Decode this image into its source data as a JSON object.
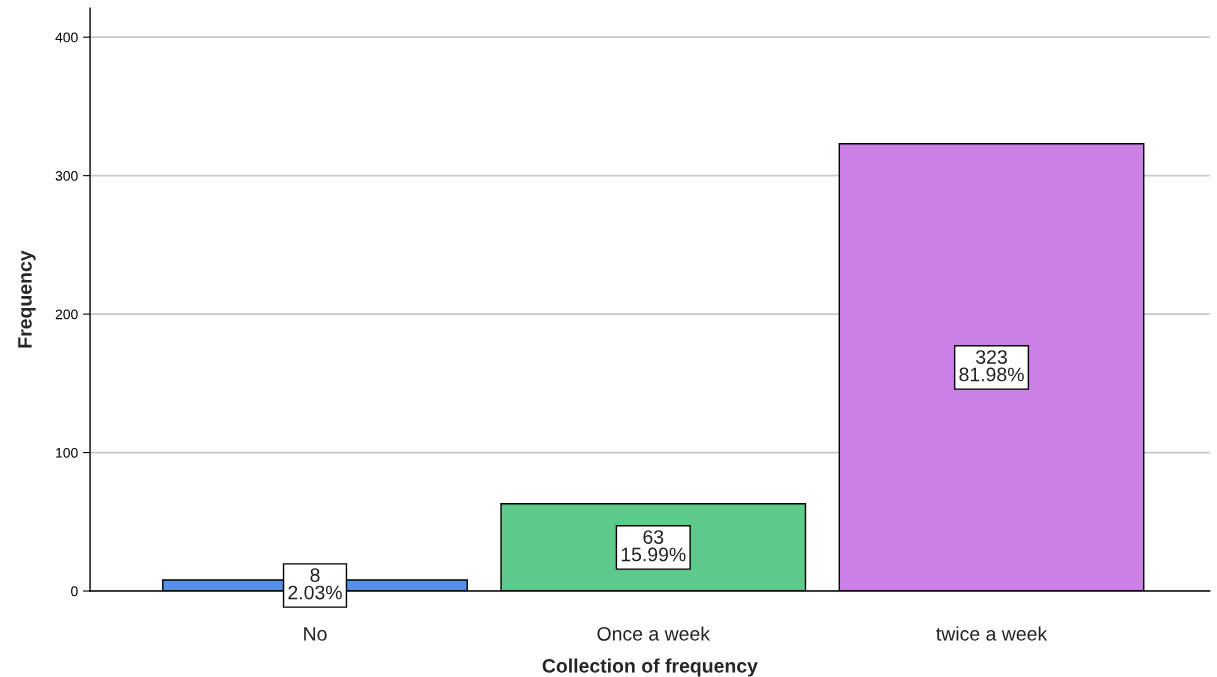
{
  "chart_data": {
    "type": "bar",
    "xlabel": "Collection of frequency",
    "ylabel": "Frequency",
    "categories": [
      "No",
      "Once a week",
      "twice a week"
    ],
    "values": [
      8,
      63,
      323
    ],
    "colors": [
      "#5592e3",
      "#5dc98a",
      "#cb80e5"
    ],
    "value_labels": [
      "8\n2.03%",
      "63\n15.99%",
      "323\n81.98%"
    ],
    "ylim": [
      0,
      421
    ],
    "yticks": [
      0,
      100,
      200,
      300,
      400
    ],
    "grid": "y"
  }
}
